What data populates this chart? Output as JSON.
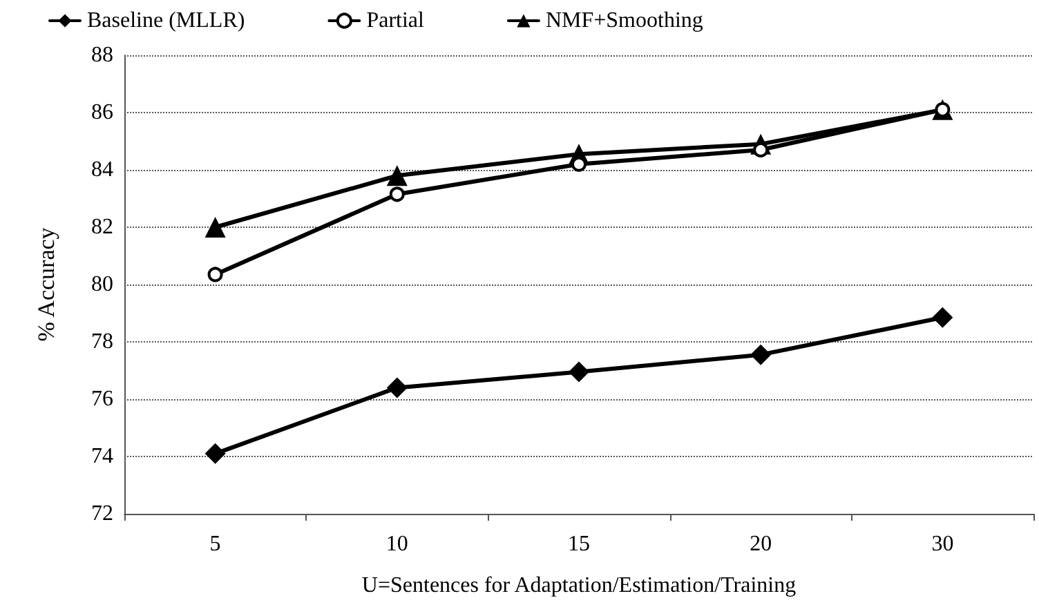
{
  "chart_data": {
    "type": "line",
    "xlabel": "U=Sentences for Adaptation/Estimation/Training",
    "ylabel": "% Accuracy",
    "categories": [
      "5",
      "10",
      "15",
      "20",
      "30"
    ],
    "series": [
      {
        "name": "Baseline (MLLR)",
        "color": "#000000",
        "marker": "diamond",
        "values": [
          74.1,
          76.4,
          76.95,
          77.55,
          78.85
        ]
      },
      {
        "name": "Partial",
        "color": "#000000",
        "marker": "circle",
        "values": [
          80.35,
          83.15,
          84.2,
          84.7,
          86.1
        ]
      },
      {
        "name": "NMF+Smoothing",
        "color": "#000000",
        "marker": "triangle",
        "values": [
          82.0,
          83.8,
          84.55,
          84.9,
          86.1
        ]
      }
    ],
    "ylim": [
      72,
      88
    ],
    "yticks": [
      72,
      74,
      76,
      78,
      80,
      82,
      84,
      86,
      88
    ],
    "grid": "y",
    "legend": "top",
    "line_style": "solid"
  }
}
